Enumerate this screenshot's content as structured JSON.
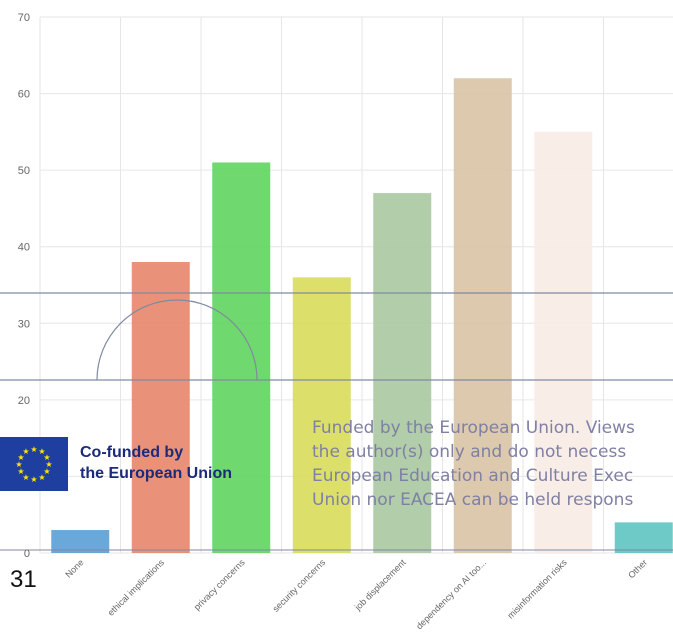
{
  "chart_data": {
    "type": "bar",
    "title": "",
    "xlabel": "",
    "ylabel": "",
    "ylim": [
      0,
      70
    ],
    "yticks": [
      0,
      10,
      20,
      30,
      40,
      50,
      60,
      70
    ],
    "grid": true,
    "categories": [
      "None",
      "ethical implications",
      "privacy concerns",
      "security concerns",
      "job displacement",
      "dependency on AI too...",
      "misinformation risks",
      "Other"
    ],
    "values": [
      3,
      38,
      51,
      36,
      47,
      62,
      55,
      4
    ],
    "colors": [
      "#5b9fd6",
      "#e8856a",
      "#5fd45f",
      "#d8dc5a",
      "#a8c8a0",
      "#d8c3a5",
      "#f8ebe6",
      "#5ec4c0"
    ]
  },
  "page_number": "31",
  "eu_badge": {
    "line1": "Co-funded by",
    "line2": "the European Union"
  },
  "disclaimer": {
    "line1": "Funded by the European Union. Views",
    "line2": "the author(s) only and do not necess",
    "line3": "European Education and Culture Exec",
    "line4": "Union nor EACEA can be held respons"
  }
}
